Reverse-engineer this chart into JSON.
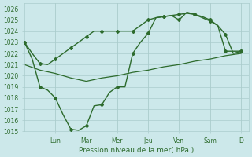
{
  "bg_color": "#cce8ea",
  "grid_color": "#aacccc",
  "line_color": "#2d6b2d",
  "marker_color": "#2d6b2d",
  "xlabel": "Pression niveau de la mer( hPa )",
  "ylim": [
    1015,
    1026.5
  ],
  "ytick_min": 1015,
  "ytick_max": 1026,
  "day_labels": [
    "Lun",
    "Mar",
    "Mer",
    "Jeu",
    "Ven",
    "Sam",
    "D"
  ],
  "day_positions": [
    2,
    4,
    6,
    8,
    10,
    12,
    14
  ],
  "xlim": [
    0,
    14.5
  ],
  "line1_x": [
    0,
    0.5,
    1,
    1.5,
    2,
    2.5,
    3,
    3.5,
    4,
    4.5,
    5,
    5.5,
    6,
    6.5,
    7,
    7.5,
    8,
    8.5,
    9,
    9.5,
    10,
    10.5,
    11,
    11.5,
    12,
    12.5,
    13,
    13.5,
    14
  ],
  "line1_y": [
    1023.0,
    1022.0,
    1021.1,
    1021.0,
    1021.5,
    1022.0,
    1022.5,
    1023.0,
    1023.5,
    1024.0,
    1024.0,
    1024.0,
    1024.0,
    1024.0,
    1024.0,
    1024.5,
    1025.0,
    1025.2,
    1025.3,
    1025.4,
    1025.5,
    1025.6,
    1025.5,
    1025.3,
    1025.0,
    1024.5,
    1023.7,
    1022.0,
    1022.2
  ],
  "line2_x": [
    0,
    0.5,
    1,
    1.5,
    2,
    2.5,
    3,
    3.5,
    4,
    4.5,
    5,
    5.5,
    6,
    6.5,
    7,
    7.5,
    8,
    8.5,
    9,
    9.5,
    10,
    10.5,
    11,
    11.5,
    12,
    12.5,
    13,
    13.5,
    14
  ],
  "line2_y": [
    1023.0,
    1021.5,
    1019.0,
    1018.7,
    1018.0,
    1016.5,
    1015.2,
    1015.1,
    1015.5,
    1017.3,
    1017.4,
    1018.5,
    1019.0,
    1019.0,
    1022.0,
    1023.0,
    1023.8,
    1025.2,
    1025.3,
    1025.4,
    1025.0,
    1025.7,
    1025.5,
    1025.2,
    1024.9,
    1024.5,
    1022.2,
    1022.2,
    1022.2
  ],
  "line3_x": [
    0,
    1,
    2,
    3,
    4,
    5,
    6,
    7,
    8,
    9,
    10,
    11,
    12,
    13,
    14
  ],
  "line3_y": [
    1021.0,
    1020.5,
    1020.2,
    1019.8,
    1019.5,
    1019.8,
    1020.0,
    1020.3,
    1020.5,
    1020.8,
    1021.0,
    1021.3,
    1021.5,
    1021.8,
    1022.0
  ]
}
